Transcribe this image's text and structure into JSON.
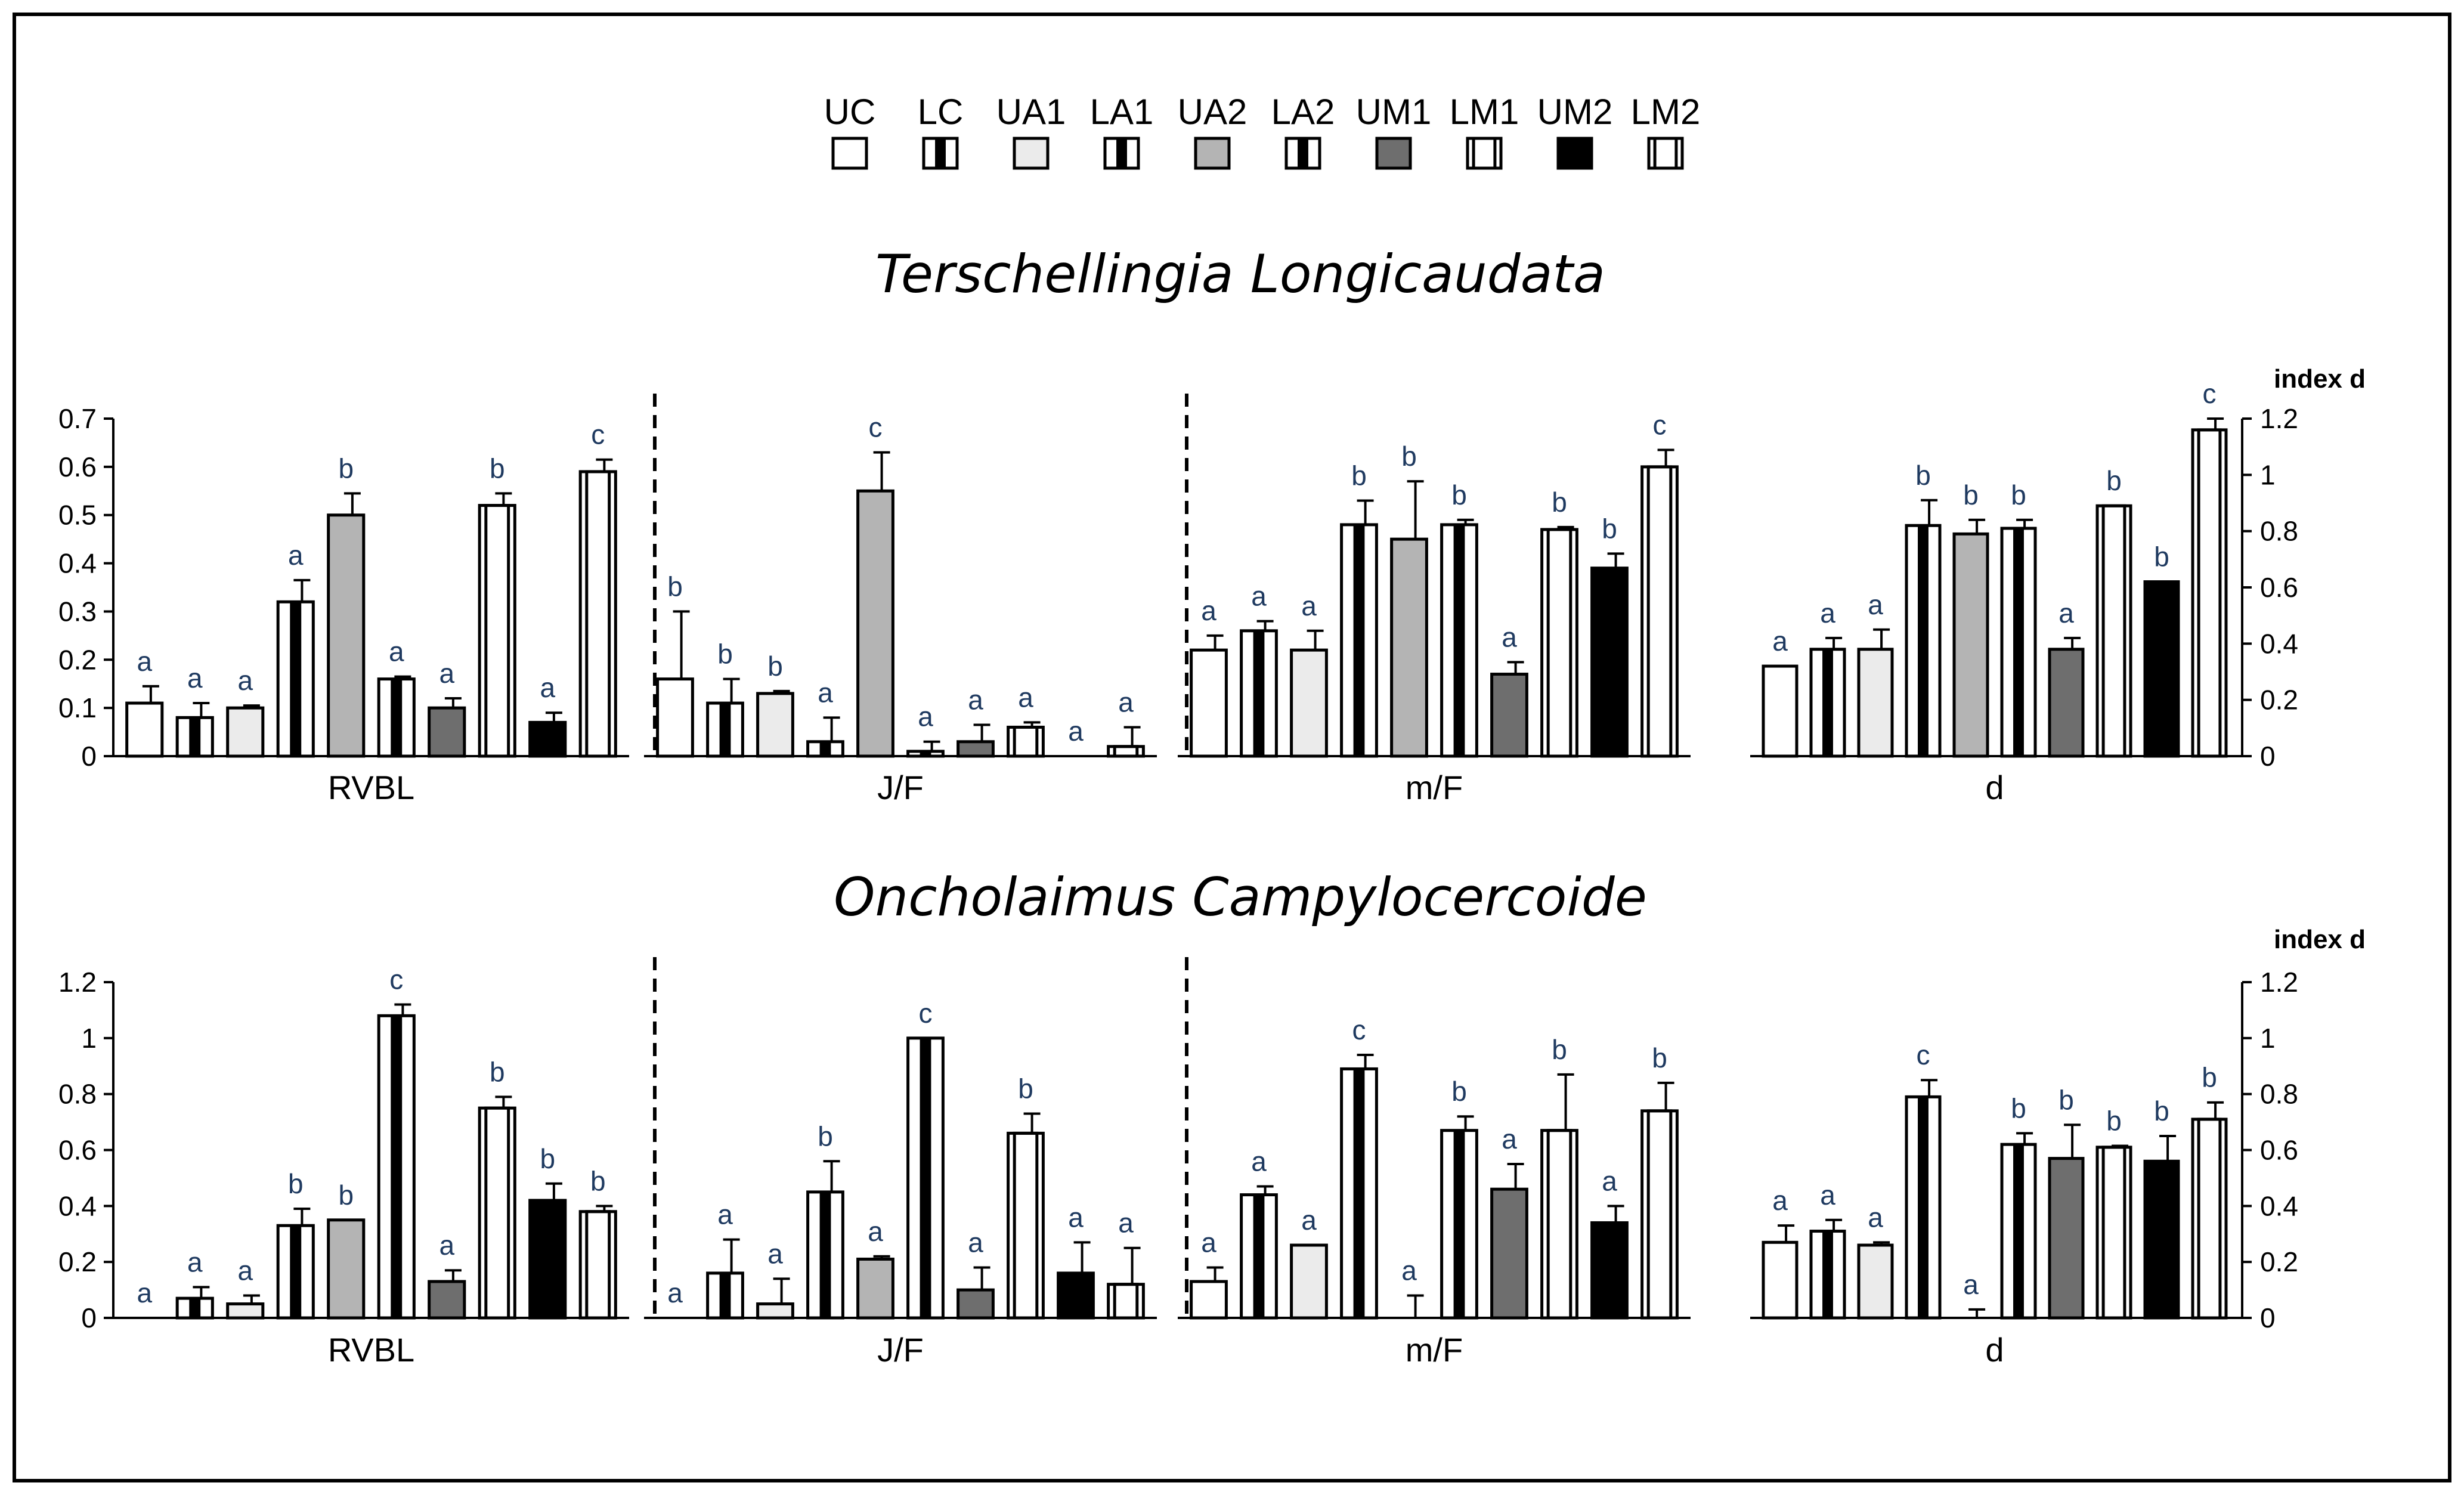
{
  "legend": [
    {
      "code": "UC",
      "style": "white"
    },
    {
      "code": "LC",
      "style": "bar-black"
    },
    {
      "code": "UA1",
      "style": "light"
    },
    {
      "code": "LA1",
      "style": "bar-black"
    },
    {
      "code": "UA2",
      "style": "gray"
    },
    {
      "code": "LA2",
      "style": "bar-black"
    },
    {
      "code": "UM1",
      "style": "dark"
    },
    {
      "code": "LM1",
      "style": "bar-white"
    },
    {
      "code": "UM2",
      "style": "black"
    },
    {
      "code": "LM2",
      "style": "bar-white"
    }
  ],
  "colors": {
    "white": "#ffffff",
    "light": "#ebebeb",
    "gray": "#b4b4b4",
    "dark": "#6e6e6e",
    "black": "#000000",
    "stripe_white": "#ffffff",
    "stripe_black": "#000000",
    "text": "#000000",
    "letter": "#1f3a60"
  },
  "chart_data": [
    {
      "type": "bar",
      "title": "Terschellingia Longicaudata",
      "series_names": [
        "UC",
        "LC",
        "UA1",
        "LA1",
        "UA2",
        "LA2",
        "UM1",
        "LM1",
        "UM2",
        "LM2"
      ],
      "left_axis": {
        "ylim": [
          0,
          0.7
        ],
        "ticks": [
          "0",
          "0.1",
          "0.2",
          "0.3",
          "0.4",
          "0.5",
          "0.6",
          "0.7"
        ]
      },
      "right_axis": {
        "label": "index d",
        "ylim": [
          0,
          1.2
        ],
        "ticks": [
          "0",
          "0.2",
          "0.4",
          "0.6",
          "0.8",
          "1",
          "1.2"
        ]
      },
      "groups": [
        {
          "label": "RVBL",
          "axis": "left",
          "values": [
            0.11,
            0.08,
            0.1,
            0.32,
            0.5,
            0.16,
            0.1,
            0.52,
            0.07,
            0.59
          ],
          "errors": [
            0.035,
            0.03,
            0.005,
            0.045,
            0.045,
            0.005,
            0.02,
            0.025,
            0.02,
            0.025
          ],
          "letters": [
            "a",
            "a",
            "a",
            "a",
            "b",
            "a",
            "a",
            "b",
            "a",
            "c"
          ]
        },
        {
          "label": "J/F",
          "axis": "left",
          "values": [
            0.16,
            0.11,
            0.13,
            0.03,
            0.55,
            0.01,
            0.03,
            0.06,
            0.0,
            0.02
          ],
          "errors": [
            0.14,
            0.05,
            0.005,
            0.05,
            0.08,
            0.02,
            0.035,
            0.01,
            0.0,
            0.04
          ],
          "letters": [
            "b",
            "b",
            "b",
            "a",
            "c",
            "a",
            "a",
            "a",
            "a",
            "a"
          ]
        },
        {
          "label": "m/F",
          "axis": "left",
          "values": [
            0.22,
            0.26,
            0.22,
            0.48,
            0.45,
            0.48,
            0.17,
            0.47,
            0.39,
            0.6
          ],
          "errors": [
            0.03,
            0.02,
            0.04,
            0.05,
            0.12,
            0.01,
            0.025,
            0.005,
            0.03,
            0.035
          ],
          "letters": [
            "a",
            "a",
            "a",
            "b",
            "b",
            "b",
            "a",
            "b",
            "b",
            "c"
          ]
        },
        {
          "label": "d",
          "axis": "right",
          "values": [
            0.32,
            0.38,
            0.38,
            0.82,
            0.79,
            0.81,
            0.38,
            0.89,
            0.62,
            1.16
          ],
          "errors": [
            0.0,
            0.04,
            0.07,
            0.09,
            0.05,
            0.03,
            0.04,
            0.0,
            0.0,
            0.04
          ],
          "letters": [
            "a",
            "a",
            "a",
            "b",
            "b",
            "b",
            "a",
            "b",
            "b",
            "c"
          ]
        }
      ]
    },
    {
      "type": "bar",
      "title": "Oncholaimus Campylocercoide",
      "series_names": [
        "UC",
        "LC",
        "UA1",
        "LA1",
        "UA2",
        "LA2",
        "UM1",
        "LM1",
        "UM2",
        "LM2"
      ],
      "left_axis": {
        "ylim": [
          0,
          1.2
        ],
        "ticks": [
          "0",
          "0.2",
          "0.4",
          "0.6",
          "0.8",
          "1",
          "1.2"
        ]
      },
      "right_axis": {
        "label": "index d",
        "ylim": [
          0,
          1.2
        ],
        "ticks": [
          "0",
          "0.2",
          "0.4",
          "0.6",
          "0.8",
          "1",
          "1.2"
        ]
      },
      "groups": [
        {
          "label": "RVBL",
          "axis": "left",
          "values": [
            0.0,
            0.07,
            0.05,
            0.33,
            0.35,
            1.08,
            0.13,
            0.75,
            0.42,
            0.38
          ],
          "errors": [
            0.0,
            0.04,
            0.03,
            0.06,
            0.0,
            0.04,
            0.04,
            0.04,
            0.06,
            0.02
          ],
          "letters": [
            "a",
            "a",
            "a",
            "b",
            "b",
            "c",
            "a",
            "b",
            "b",
            "b"
          ]
        },
        {
          "label": "J/F",
          "axis": "left",
          "values": [
            0.0,
            0.16,
            0.05,
            0.45,
            0.21,
            1.0,
            0.1,
            0.66,
            0.16,
            0.12
          ],
          "errors": [
            0.0,
            0.12,
            0.09,
            0.11,
            0.01,
            0.0,
            0.08,
            0.07,
            0.11,
            0.13
          ],
          "letters": [
            "a",
            "a",
            "a",
            "b",
            "a",
            "c",
            "a",
            "b",
            "a",
            "a"
          ]
        },
        {
          "label": "m/F",
          "axis": "left",
          "values": [
            0.13,
            0.44,
            0.26,
            0.89,
            0.0,
            0.67,
            0.46,
            0.67,
            0.34,
            0.74
          ],
          "errors": [
            0.05,
            0.03,
            0.0,
            0.05,
            0.08,
            0.05,
            0.09,
            0.2,
            0.06,
            0.1
          ],
          "letters": [
            "a",
            "a",
            "a",
            "c",
            "a",
            "b",
            "a",
            "b",
            "a",
            "b"
          ]
        },
        {
          "label": "d",
          "axis": "right",
          "values": [
            0.27,
            0.31,
            0.26,
            0.79,
            0.0,
            0.62,
            0.57,
            0.61,
            0.56,
            0.71
          ],
          "errors": [
            0.06,
            0.04,
            0.01,
            0.06,
            0.03,
            0.04,
            0.12,
            0.005,
            0.09,
            0.06
          ],
          "letters": [
            "a",
            "a",
            "a",
            "c",
            "a",
            "b",
            "b",
            "b",
            "b",
            "b"
          ]
        }
      ]
    }
  ]
}
